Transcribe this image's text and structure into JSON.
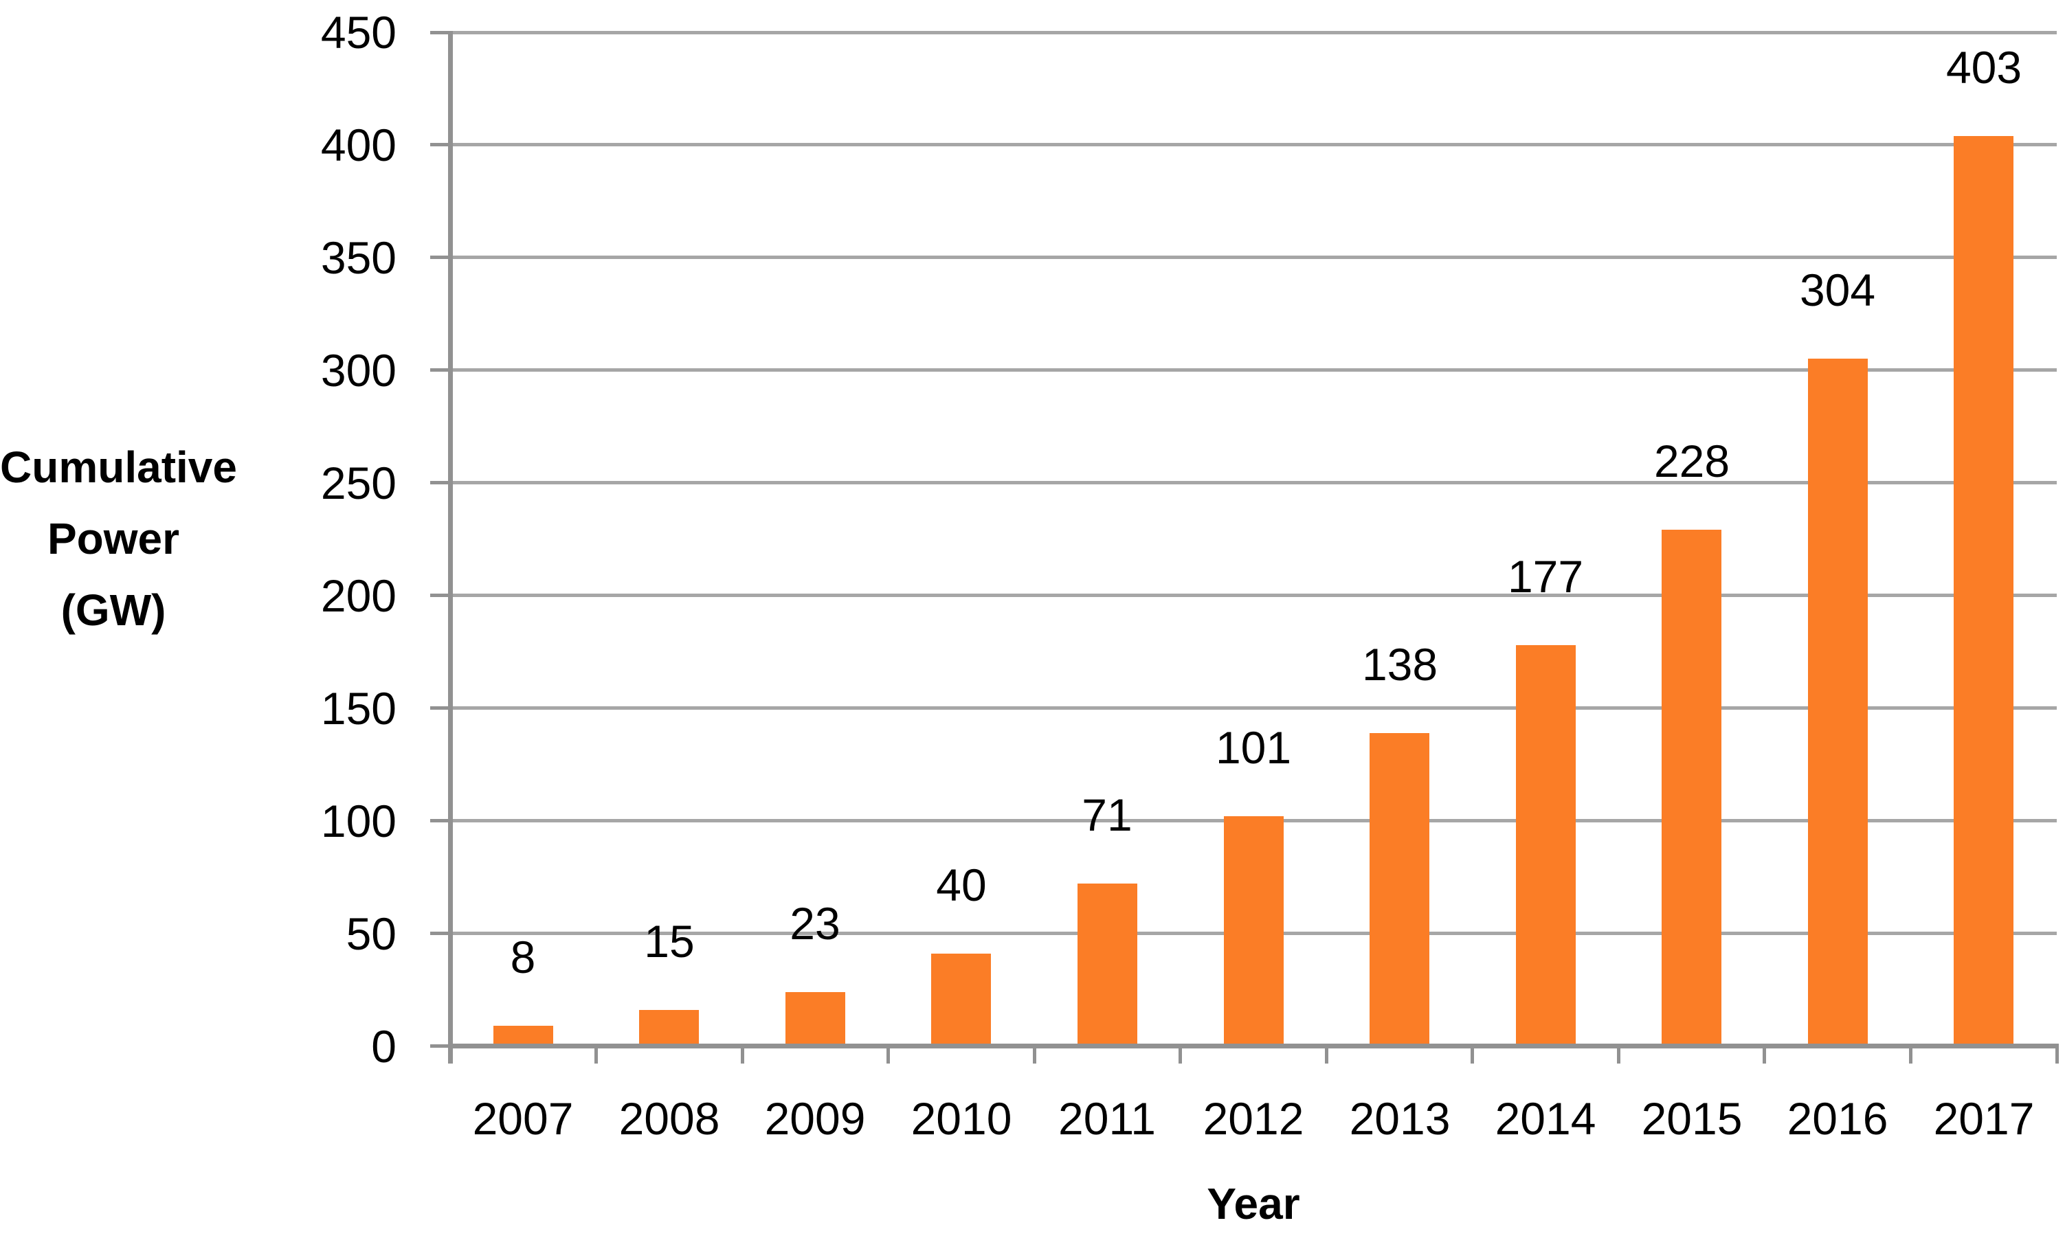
{
  "chart_data": {
    "type": "bar",
    "title": "",
    "categories": [
      "2007",
      "2008",
      "2009",
      "2010",
      "2011",
      "2012",
      "2013",
      "2014",
      "2015",
      "2016",
      "2017"
    ],
    "values": [
      8,
      15,
      23,
      40,
      71,
      101,
      138,
      177,
      228,
      304,
      403
    ],
    "data_labels_shown": true,
    "xlabel": "Year",
    "ylabel": "Cumulative Power (GW)",
    "ylabel_lines": [
      "Cumulative",
      "Power",
      "(GW)"
    ],
    "ylim": [
      0,
      450
    ],
    "y_tick_step": 50,
    "y_ticks": [
      0,
      50,
      100,
      150,
      200,
      250,
      300,
      350,
      400,
      450
    ],
    "grid": true,
    "legend_position": "none",
    "colors": {
      "bar": "#FB7D26",
      "gridline": "#A6A6A6",
      "axis": "#919191",
      "text": "#000000",
      "background": "#FFFFFF"
    }
  }
}
